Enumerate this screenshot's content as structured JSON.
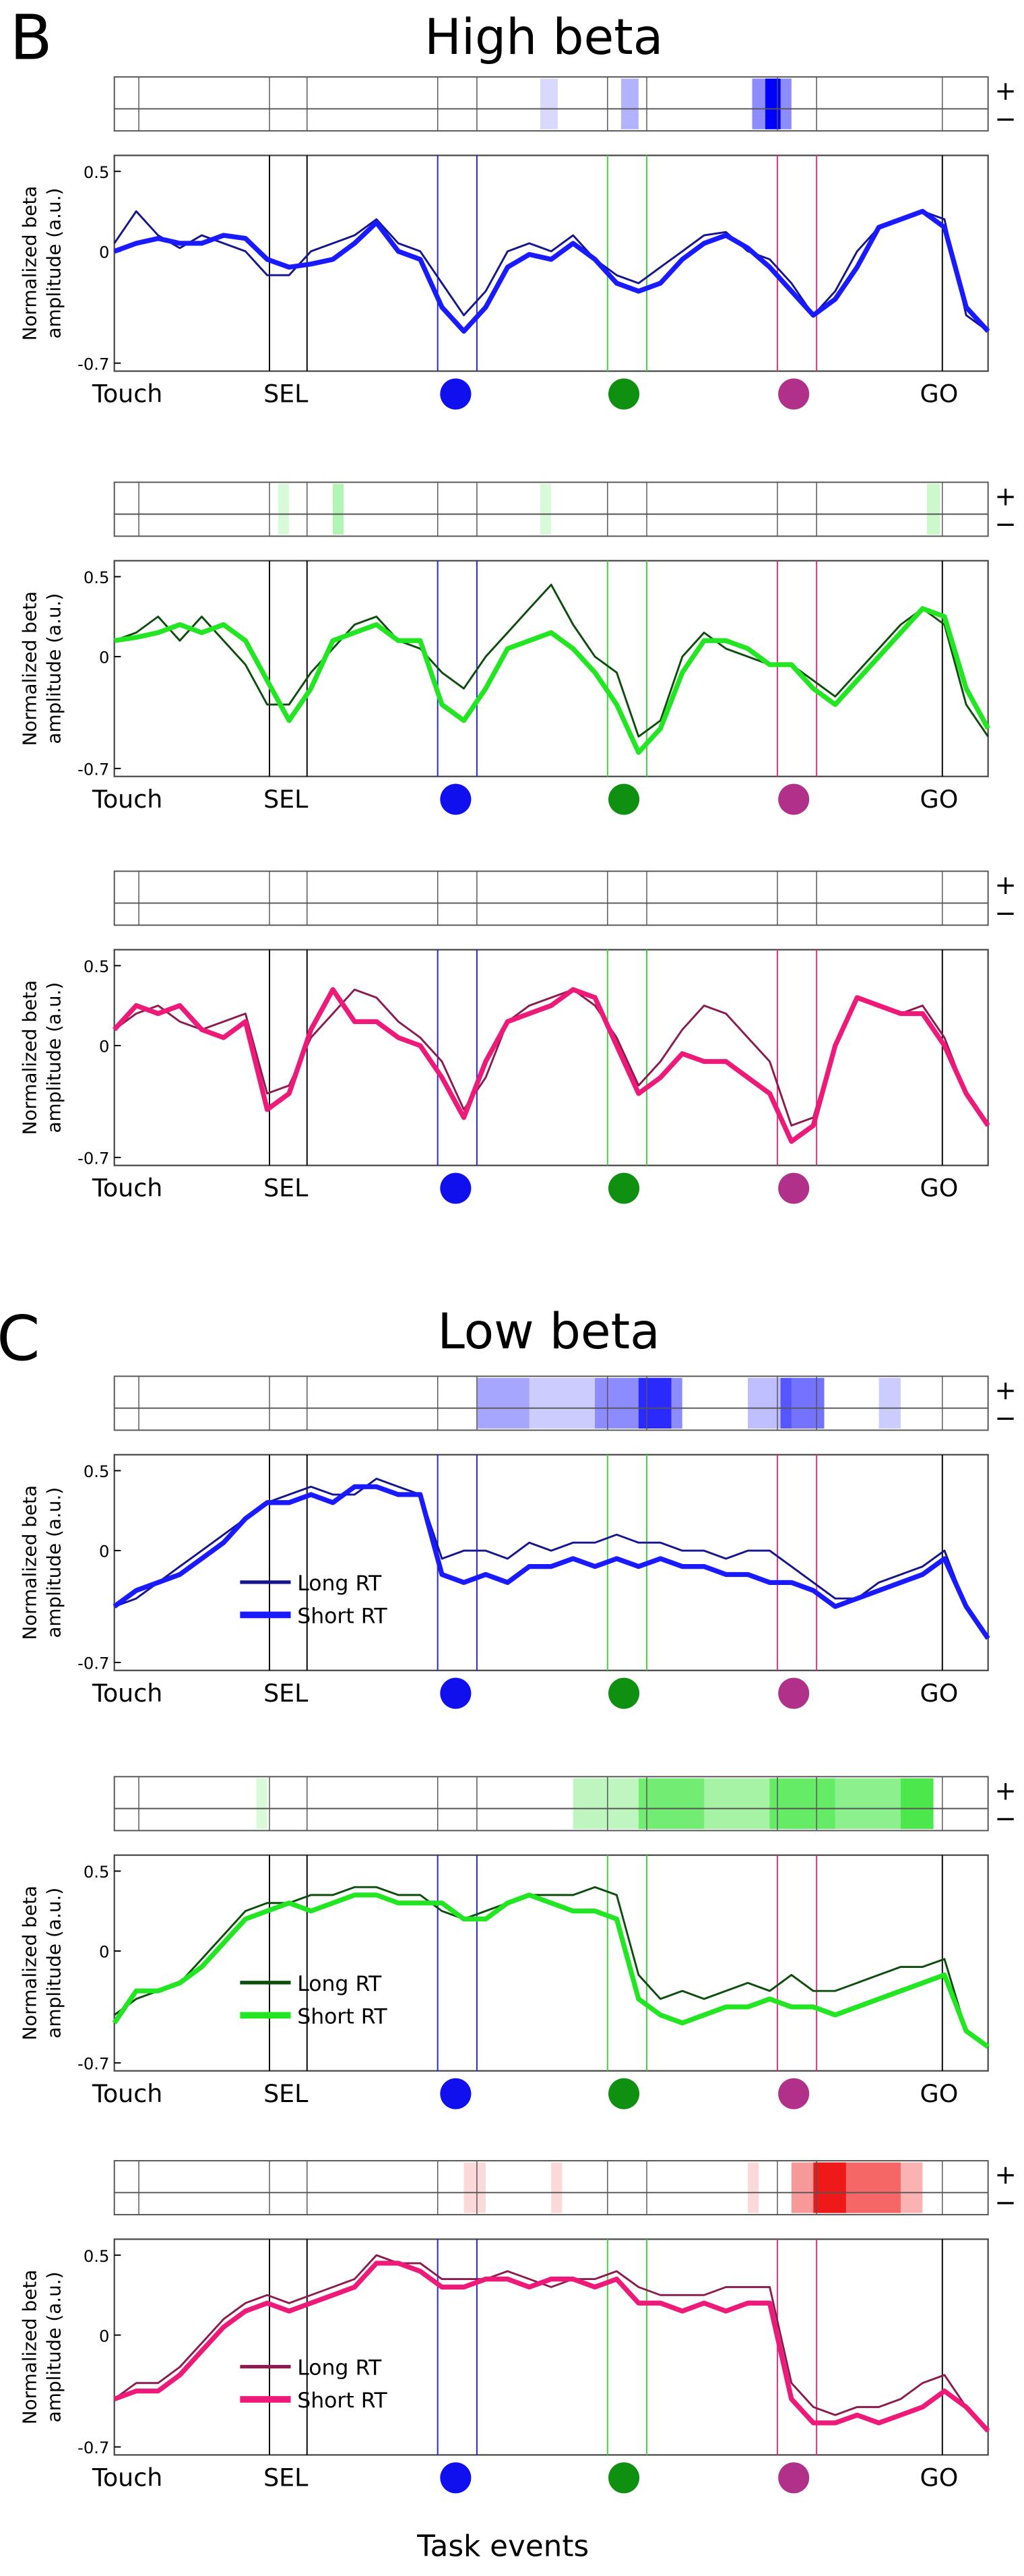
{
  "figure": {
    "panels": [
      {
        "label": "B",
        "title": "High beta"
      },
      {
        "label": "C",
        "title": "Low beta"
      }
    ],
    "xlabel": "Task events",
    "strip_labels": [
      "+",
      "−"
    ]
  },
  "chart_data": [
    {
      "type": "line",
      "ylabel": [
        "Normalized beta",
        "amplitude (a.u.)"
      ],
      "ylim": [
        -0.75,
        0.6
      ],
      "yticks": [
        0.5,
        0,
        -0.7
      ],
      "events": [
        "Touch",
        "SEL",
        "GO"
      ],
      "legend": false,
      "sig_color": "#0000ff",
      "sig": [
        [
          19.5,
          20.3,
          0.15
        ],
        [
          23.2,
          24,
          0.3
        ],
        [
          29.2,
          31,
          0.45
        ],
        [
          29.8,
          30.5,
          1
        ]
      ],
      "series": [
        {
          "color": "#14148c",
          "width": 1.2,
          "values": [
            0.05,
            0.25,
            0.1,
            0.02,
            0.1,
            0.05,
            0,
            -0.15,
            -0.15,
            0,
            0.05,
            0.1,
            0.2,
            0.05,
            0,
            -0.2,
            -0.4,
            -0.25,
            0,
            0.05,
            0,
            0.1,
            -0.05,
            -0.15,
            -0.2,
            -0.1,
            0,
            0.1,
            0.12,
            0,
            -0.05,
            -0.2,
            -0.4,
            -0.25,
            0,
            0.15,
            0.2,
            0.25,
            0.2,
            -0.4,
            -0.5
          ]
        },
        {
          "color": "#1a1aff",
          "width": 3,
          "values": [
            0,
            0.05,
            0.08,
            0.05,
            0.05,
            0.1,
            0.08,
            -0.05,
            -0.1,
            -0.08,
            -0.05,
            0.05,
            0.18,
            0,
            -0.05,
            -0.35,
            -0.5,
            -0.35,
            -0.1,
            -0.02,
            -0.05,
            0.05,
            -0.05,
            -0.2,
            -0.25,
            -0.2,
            -0.05,
            0.05,
            0.1,
            0.02,
            -0.1,
            -0.25,
            -0.4,
            -0.3,
            -0.1,
            0.15,
            0.2,
            0.25,
            0.15,
            -0.35,
            -0.5
          ]
        }
      ]
    },
    {
      "type": "line",
      "ylabel": [
        "Normalized beta",
        "amplitude (a.u.)"
      ],
      "ylim": [
        -0.75,
        0.6
      ],
      "yticks": [
        0.5,
        0,
        -0.7
      ],
      "events": [
        "Touch",
        "SEL",
        "GO"
      ],
      "legend": false,
      "sig_color": "#00dd00",
      "sig": [
        [
          7.5,
          8,
          0.15
        ],
        [
          10,
          10.5,
          0.3
        ],
        [
          19.5,
          20,
          0.15
        ],
        [
          37.2,
          37.8,
          0.2
        ]
      ],
      "series": [
        {
          "color": "#0b4d0b",
          "width": 1.2,
          "values": [
            0.1,
            0.15,
            0.25,
            0.1,
            0.25,
            0.1,
            -0.05,
            -0.3,
            -0.3,
            -0.1,
            0.05,
            0.2,
            0.25,
            0.1,
            0.05,
            -0.1,
            -0.2,
            0,
            0.15,
            0.3,
            0.45,
            0.2,
            0,
            -0.1,
            -0.5,
            -0.4,
            0,
            0.15,
            0.05,
            0,
            -0.05,
            -0.05,
            -0.15,
            -0.25,
            -0.1,
            0.05,
            0.2,
            0.3,
            0.2,
            -0.3,
            -0.5
          ]
        },
        {
          "color": "#22e622",
          "width": 3,
          "values": [
            0.1,
            0.12,
            0.15,
            0.2,
            0.15,
            0.2,
            0.1,
            -0.15,
            -0.4,
            -0.2,
            0.1,
            0.15,
            0.2,
            0.1,
            0.1,
            -0.3,
            -0.4,
            -0.2,
            0.05,
            0.1,
            0.15,
            0.05,
            -0.1,
            -0.3,
            -0.6,
            -0.45,
            -0.1,
            0.1,
            0.1,
            0.05,
            -0.05,
            -0.05,
            -0.2,
            -0.3,
            -0.15,
            0,
            0.15,
            0.3,
            0.25,
            -0.2,
            -0.45
          ]
        }
      ]
    },
    {
      "type": "line",
      "ylabel": [
        "Normalized beta",
        "amplitude (a.u.)"
      ],
      "ylim": [
        -0.75,
        0.6
      ],
      "yticks": [
        0.5,
        0,
        -0.7
      ],
      "events": [
        "Touch",
        "SEL",
        "GO"
      ],
      "legend": false,
      "sig_color": "#ee0000",
      "sig": [],
      "series": [
        {
          "color": "#8b1a4f",
          "width": 1.2,
          "values": [
            0.1,
            0.2,
            0.25,
            0.15,
            0.1,
            0.15,
            0.2,
            -0.3,
            -0.25,
            0.05,
            0.2,
            0.35,
            0.3,
            0.15,
            0.05,
            -0.1,
            -0.4,
            -0.2,
            0.15,
            0.25,
            0.3,
            0.35,
            0.25,
            0.05,
            -0.25,
            -0.1,
            0.1,
            0.25,
            0.2,
            0.05,
            -0.1,
            -0.5,
            -0.45,
            0,
            0.3,
            0.25,
            0.2,
            0.25,
            0.05,
            -0.3,
            -0.5
          ]
        },
        {
          "color": "#ee1a7a",
          "width": 3,
          "values": [
            0.1,
            0.25,
            0.2,
            0.25,
            0.1,
            0.05,
            0.15,
            -0.4,
            -0.3,
            0.1,
            0.35,
            0.15,
            0.15,
            0.05,
            0,
            -0.2,
            -0.45,
            -0.1,
            0.15,
            0.2,
            0.25,
            0.35,
            0.3,
            0,
            -0.3,
            -0.2,
            -0.05,
            -0.1,
            -0.1,
            -0.2,
            -0.3,
            -0.6,
            -0.5,
            0,
            0.3,
            0.25,
            0.2,
            0.2,
            0,
            -0.3,
            -0.5
          ]
        }
      ]
    },
    {
      "type": "line",
      "ylabel": [
        "Normalized beta",
        "amplitude (a.u.)"
      ],
      "ylim": [
        -0.75,
        0.6
      ],
      "yticks": [
        0.5,
        0,
        -0.7
      ],
      "events": [
        "Touch",
        "SEL",
        "GO"
      ],
      "legend": true,
      "sig_color": "#0000ff",
      "sig": [
        [
          16.6,
          19,
          0.35
        ],
        [
          19,
          22,
          0.2
        ],
        [
          22,
          26,
          0.45
        ],
        [
          24,
          25.5,
          0.7
        ],
        [
          29,
          31,
          0.25
        ],
        [
          30.5,
          32.5,
          0.55
        ],
        [
          35,
          36,
          0.2
        ]
      ],
      "series": [
        {
          "name": "Long RT",
          "color": "#14148c",
          "width": 1.2,
          "values": [
            -0.35,
            -0.3,
            -0.2,
            -0.1,
            0,
            0.1,
            0.2,
            0.3,
            0.35,
            0.4,
            0.35,
            0.35,
            0.45,
            0.4,
            0.35,
            -0.05,
            0,
            0,
            -0.05,
            0.05,
            0,
            0.05,
            0.05,
            0.1,
            0.05,
            0.05,
            0,
            0,
            -0.05,
            0,
            0,
            -0.1,
            -0.2,
            -0.3,
            -0.3,
            -0.2,
            -0.15,
            -0.1,
            0,
            -0.35,
            -0.55
          ]
        },
        {
          "name": "Short RT",
          "color": "#1a1aff",
          "width": 3,
          "values": [
            -0.35,
            -0.25,
            -0.2,
            -0.15,
            -0.05,
            0.05,
            0.2,
            0.3,
            0.3,
            0.35,
            0.3,
            0.4,
            0.4,
            0.35,
            0.35,
            -0.15,
            -0.2,
            -0.15,
            -0.2,
            -0.1,
            -0.1,
            -0.05,
            -0.1,
            -0.05,
            -0.1,
            -0.05,
            -0.1,
            -0.1,
            -0.15,
            -0.15,
            -0.2,
            -0.2,
            -0.25,
            -0.35,
            -0.3,
            -0.25,
            -0.2,
            -0.15,
            -0.05,
            -0.35,
            -0.55
          ]
        }
      ]
    },
    {
      "type": "line",
      "ylabel": [
        "Normalized beta",
        "amplitude (a.u.)"
      ],
      "ylim": [
        -0.75,
        0.6
      ],
      "yticks": [
        0.5,
        0,
        -0.7
      ],
      "events": [
        "Touch",
        "SEL",
        "GO"
      ],
      "legend": true,
      "sig_color": "#00dd00",
      "sig": [
        [
          6.5,
          7,
          0.15
        ],
        [
          21,
          24,
          0.25
        ],
        [
          24,
          27,
          0.55
        ],
        [
          27,
          30,
          0.35
        ],
        [
          30,
          33,
          0.6
        ],
        [
          33,
          36,
          0.45
        ],
        [
          36,
          37.5,
          0.7
        ]
      ],
      "series": [
        {
          "name": "Long RT",
          "color": "#0b4d0b",
          "width": 1.2,
          "values": [
            -0.4,
            -0.3,
            -0.25,
            -0.2,
            -0.05,
            0.1,
            0.25,
            0.3,
            0.3,
            0.35,
            0.35,
            0.4,
            0.4,
            0.35,
            0.35,
            0.25,
            0.2,
            0.25,
            0.3,
            0.35,
            0.35,
            0.35,
            0.4,
            0.35,
            -0.15,
            -0.3,
            -0.25,
            -0.3,
            -0.25,
            -0.2,
            -0.25,
            -0.15,
            -0.25,
            -0.25,
            -0.2,
            -0.15,
            -0.1,
            -0.1,
            -0.05,
            -0.5,
            -0.6
          ]
        },
        {
          "name": "Short RT",
          "color": "#22e622",
          "width": 3,
          "values": [
            -0.45,
            -0.25,
            -0.25,
            -0.2,
            -0.1,
            0.05,
            0.2,
            0.25,
            0.3,
            0.25,
            0.3,
            0.35,
            0.35,
            0.3,
            0.3,
            0.3,
            0.2,
            0.2,
            0.3,
            0.35,
            0.3,
            0.25,
            0.25,
            0.2,
            -0.3,
            -0.4,
            -0.45,
            -0.4,
            -0.35,
            -0.35,
            -0.3,
            -0.35,
            -0.35,
            -0.4,
            -0.35,
            -0.3,
            -0.25,
            -0.2,
            -0.15,
            -0.5,
            -0.6
          ]
        }
      ]
    },
    {
      "type": "line",
      "ylabel": [
        "Normalized beta",
        "amplitude (a.u.)"
      ],
      "ylim": [
        -0.75,
        0.6
      ],
      "yticks": [
        0.5,
        0,
        -0.7
      ],
      "events": [
        "Touch",
        "SEL",
        "GO"
      ],
      "legend": true,
      "sig_color": "#ee0000",
      "sig": [
        [
          16,
          17,
          0.15
        ],
        [
          20,
          20.5,
          0.15
        ],
        [
          29,
          29.5,
          0.15
        ],
        [
          31,
          32,
          0.4
        ],
        [
          32,
          33.5,
          0.9
        ],
        [
          33.5,
          36,
          0.6
        ],
        [
          36,
          37,
          0.3
        ]
      ],
      "series": [
        {
          "name": "Long RT",
          "color": "#8b1a4f",
          "width": 1.2,
          "values": [
            -0.4,
            -0.3,
            -0.3,
            -0.2,
            -0.05,
            0.1,
            0.2,
            0.25,
            0.2,
            0.25,
            0.3,
            0.35,
            0.5,
            0.45,
            0.45,
            0.35,
            0.35,
            0.35,
            0.4,
            0.35,
            0.3,
            0.35,
            0.35,
            0.4,
            0.3,
            0.25,
            0.25,
            0.25,
            0.3,
            0.3,
            0.3,
            -0.3,
            -0.45,
            -0.5,
            -0.45,
            -0.45,
            -0.4,
            -0.3,
            -0.25,
            -0.45,
            -0.6
          ]
        },
        {
          "name": "Short RT",
          "color": "#ee1a7a",
          "width": 3,
          "values": [
            -0.4,
            -0.35,
            -0.35,
            -0.25,
            -0.1,
            0.05,
            0.15,
            0.2,
            0.15,
            0.2,
            0.25,
            0.3,
            0.45,
            0.45,
            0.4,
            0.3,
            0.3,
            0.35,
            0.35,
            0.3,
            0.35,
            0.35,
            0.3,
            0.35,
            0.2,
            0.2,
            0.15,
            0.2,
            0.15,
            0.2,
            0.2,
            -0.4,
            -0.55,
            -0.55,
            -0.5,
            -0.55,
            -0.5,
            -0.45,
            -0.35,
            -0.45,
            -0.6
          ]
        }
      ]
    }
  ]
}
